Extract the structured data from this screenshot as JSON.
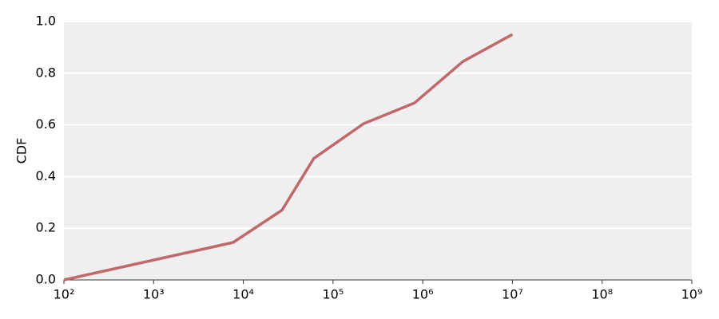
{
  "chart_data": {
    "type": "line",
    "ylabel": "CDF",
    "xscale": "log",
    "x": [
      100,
      7700,
      27000,
      61000,
      220000,
      810000,
      2800000,
      10000000
    ],
    "series": [
      {
        "color": "#c0686a",
        "values": [
          0,
          0.145,
          0.27,
          0.47,
          0.605,
          0.685,
          0.845,
          0.95
        ]
      }
    ],
    "xlim": [
      100,
      1000000000
    ],
    "xticks": [
      {
        "value": 100,
        "label": "10²"
      },
      {
        "value": 1000,
        "label": "10³"
      },
      {
        "value": 10000,
        "label": "10⁴"
      },
      {
        "value": 100000,
        "label": "10⁵"
      },
      {
        "value": 1000000,
        "label": "10⁶"
      },
      {
        "value": 10000000,
        "label": "10⁷"
      },
      {
        "value": 100000000,
        "label": "10⁸"
      },
      {
        "value": 1000000000,
        "label": "10⁹"
      }
    ],
    "ylim": [
      0,
      1
    ],
    "yticks": [
      {
        "value": 0,
        "label": "0.0"
      },
      0.2,
      0.4,
      0.6,
      0.8,
      {
        "value": 1,
        "label": "1.0"
      }
    ],
    "grid": true
  }
}
